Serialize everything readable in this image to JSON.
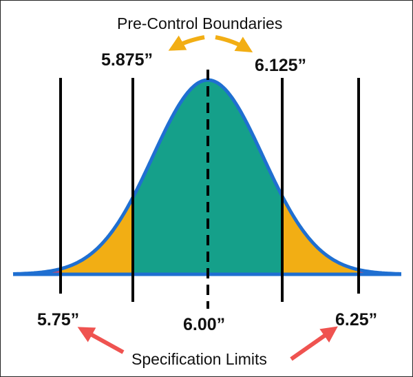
{
  "diagram": {
    "top_caption": "Pre-Control Boundaries",
    "bottom_caption": "Specification Limits",
    "labels": {
      "precontrol_low": "5.875”",
      "precontrol_high": "6.125”",
      "spec_low": "5.75”",
      "spec_high": "6.25”",
      "center": "6.00”"
    },
    "colors": {
      "curve_outline": "#1f6fd1",
      "green_zone": "#15a08a",
      "yellow_zone": "#f2ae14",
      "red_zone": "#e8415a",
      "precontrol_arrow": "#f2ae14",
      "spec_arrow": "#ef5350",
      "lines": "#000000"
    }
  }
}
